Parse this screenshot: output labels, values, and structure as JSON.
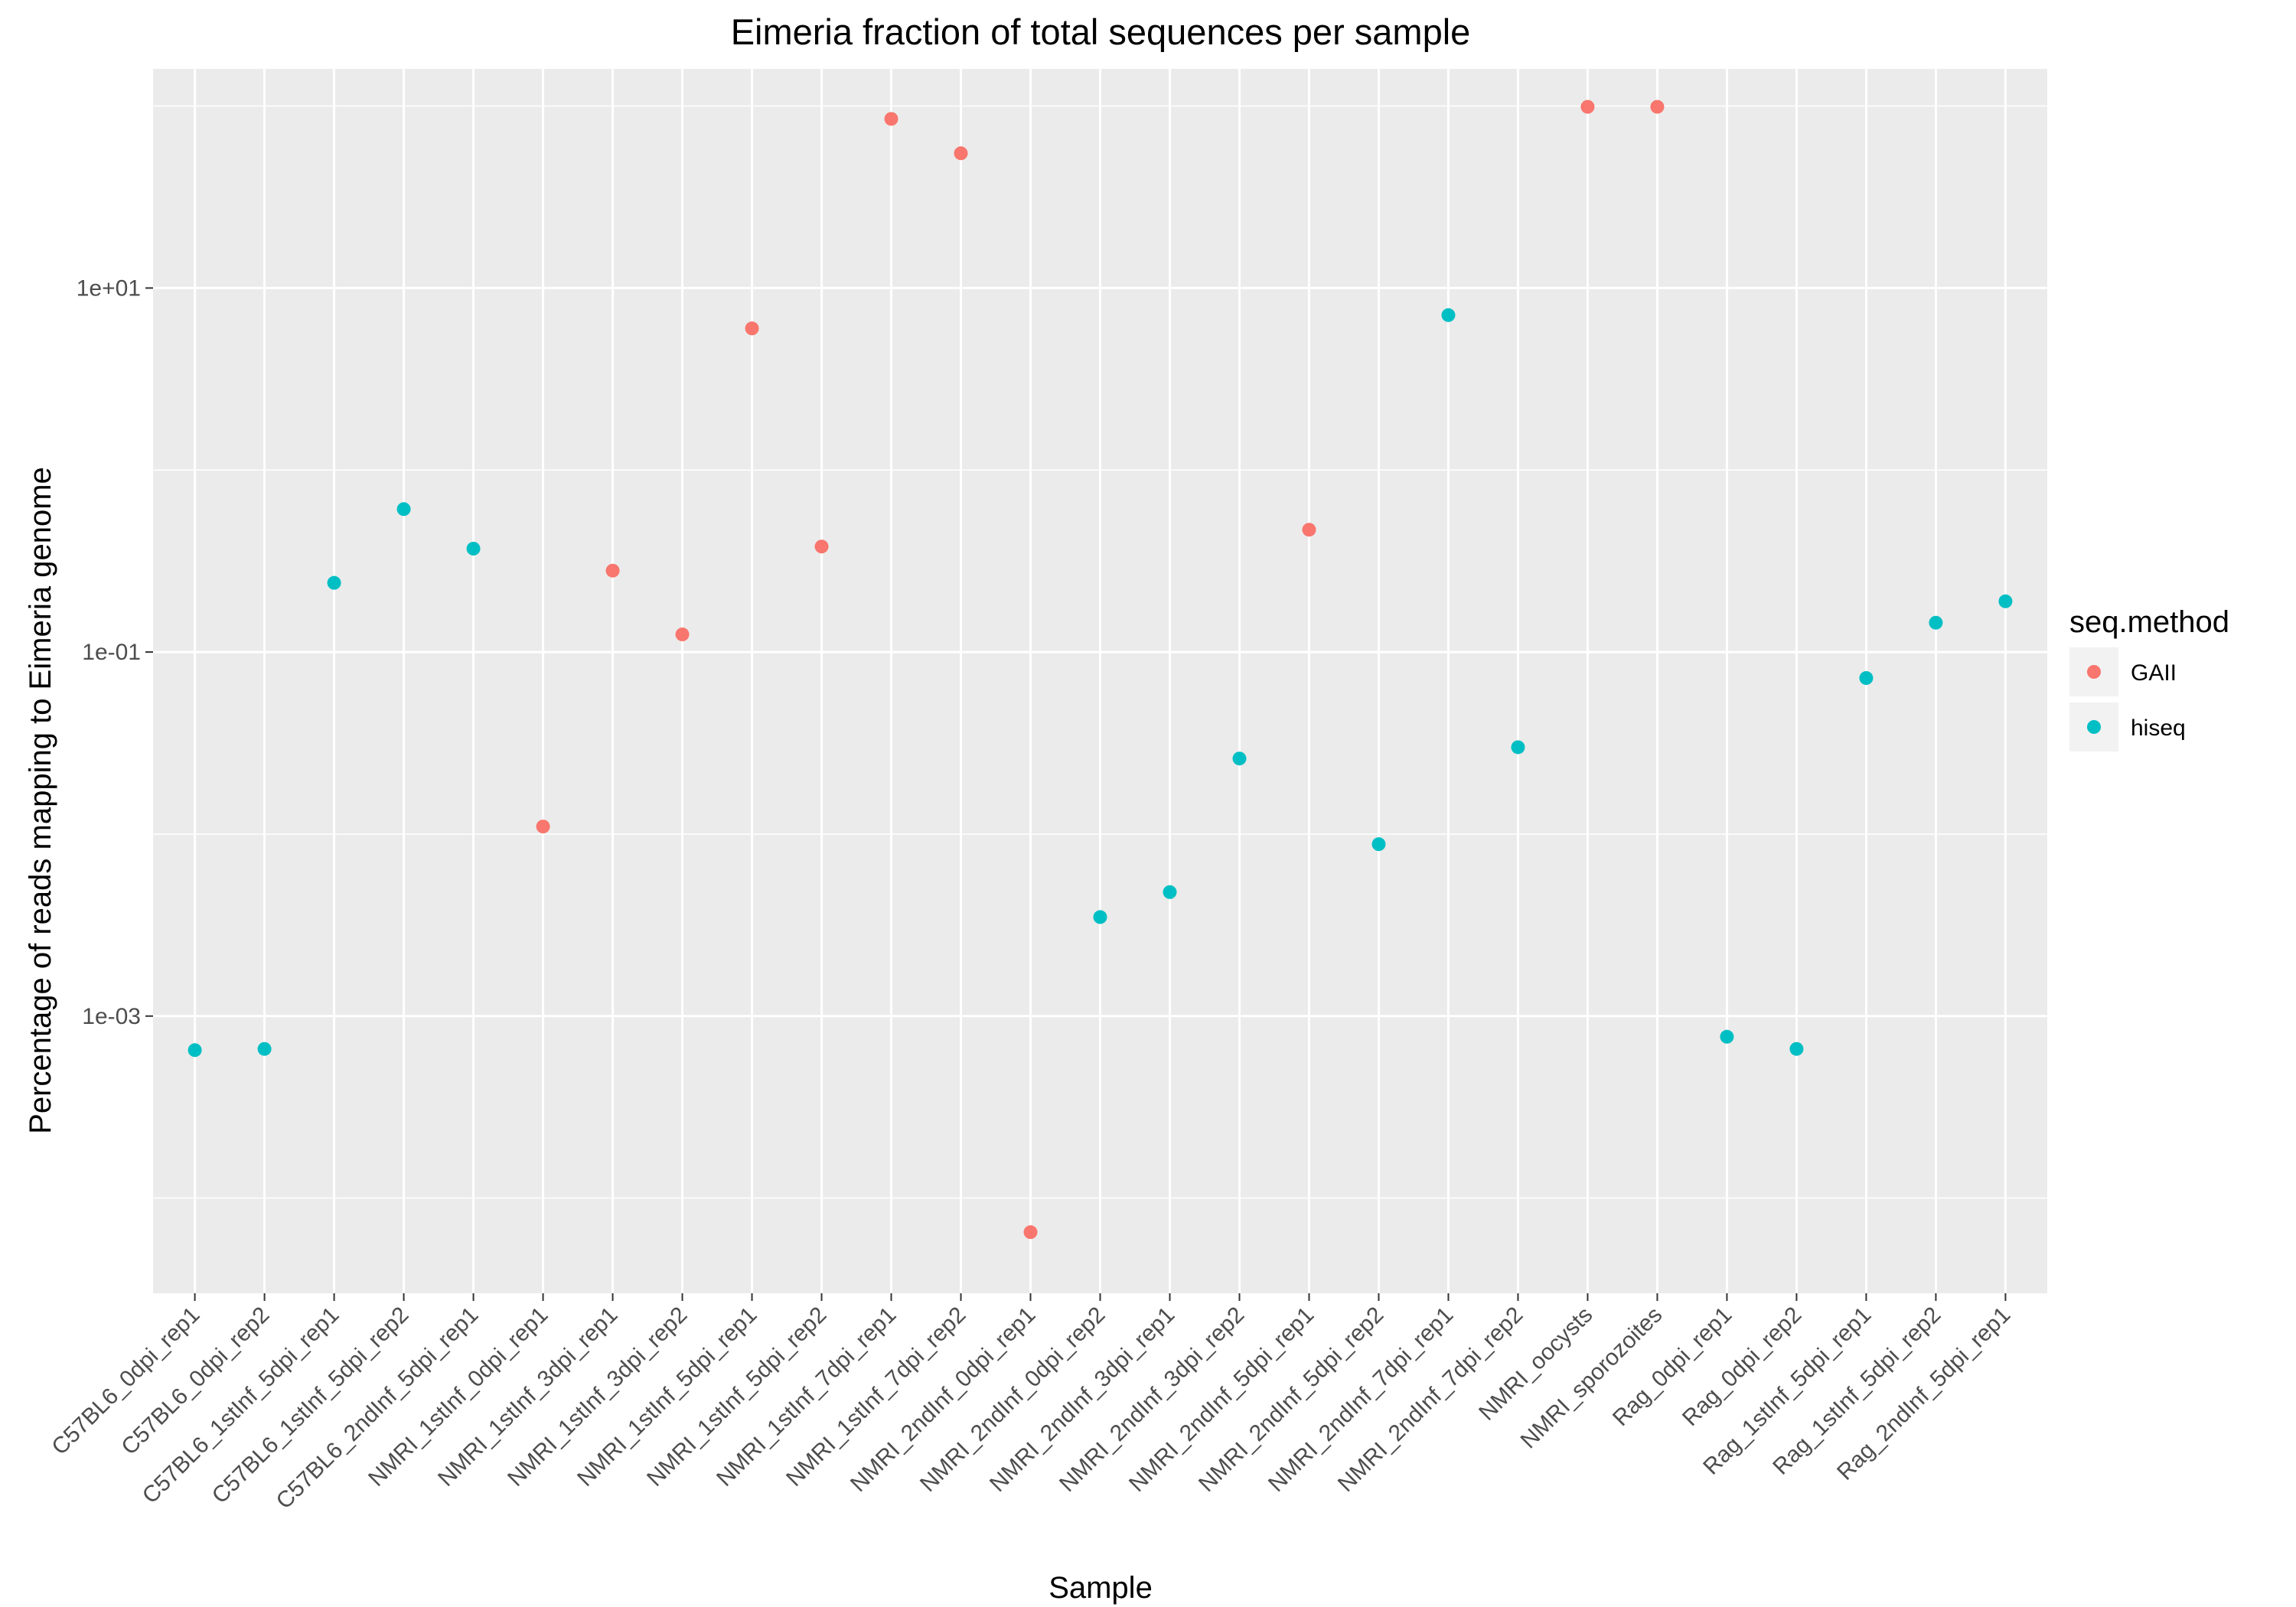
{
  "chart_data": {
    "type": "scatter",
    "title": "Eimeria fraction of total sequences per sample",
    "xlabel": "Sample",
    "ylabel": "Percentage of reads mapping to Eimeria genome",
    "y_scale": "log10",
    "ylim": [
      3e-05,
      160
    ],
    "y_ticks": [
      {
        "value": 0.001,
        "label": "1e-03"
      },
      {
        "value": 0.1,
        "label": "1e-01"
      },
      {
        "value": 10,
        "label": "1e+01"
      }
    ],
    "y_minor_gridlines": [
      0.0001,
      0.01,
      1,
      100
    ],
    "grid": true,
    "categories": [
      "C57BL6_0dpi_rep1",
      "C57BL6_0dpi_rep2",
      "C57BL6_1stInf_5dpi_rep1",
      "C57BL6_1stInf_5dpi_rep2",
      "C57BL6_2ndInf_5dpi_rep1",
      "NMRI_1stInf_0dpi_rep1",
      "NMRI_1stInf_3dpi_rep1",
      "NMRI_1stInf_3dpi_rep2",
      "NMRI_1stInf_5dpi_rep1",
      "NMRI_1stInf_5dpi_rep2",
      "NMRI_1stInf_7dpi_rep1",
      "NMRI_1stInf_7dpi_rep2",
      "NMRI_2ndInf_0dpi_rep1",
      "NMRI_2ndInf_0dpi_rep2",
      "NMRI_2ndInf_3dpi_rep1",
      "NMRI_2ndInf_3dpi_rep2",
      "NMRI_2ndInf_5dpi_rep1",
      "NMRI_2ndInf_5dpi_rep2",
      "NMRI_2ndInf_7dpi_rep1",
      "NMRI_2ndInf_7dpi_rep2",
      "NMRI_oocysts",
      "NMRI_sporozoites",
      "Rag_0dpi_rep1",
      "Rag_0dpi_rep2",
      "Rag_1stInf_5dpi_rep1",
      "Rag_1stInf_5dpi_rep2",
      "Rag_2ndInf_5dpi_rep1"
    ],
    "legend": {
      "title": "seq.method",
      "placement": "right",
      "entries": [
        {
          "name": "GAII",
          "color": "#F8766D"
        },
        {
          "name": "hiseq",
          "color": "#00BFC4"
        }
      ]
    },
    "points": [
      {
        "x": "C57BL6_0dpi_rep1",
        "y": 0.00065,
        "method": "hiseq"
      },
      {
        "x": "C57BL6_0dpi_rep2",
        "y": 0.00066,
        "method": "hiseq"
      },
      {
        "x": "C57BL6_1stInf_5dpi_rep1",
        "y": 0.24,
        "method": "hiseq"
      },
      {
        "x": "C57BL6_1stInf_5dpi_rep2",
        "y": 0.61,
        "method": "hiseq"
      },
      {
        "x": "C57BL6_2ndInf_5dpi_rep1",
        "y": 0.37,
        "method": "hiseq"
      },
      {
        "x": "NMRI_1stInf_0dpi_rep1",
        "y": 0.011,
        "method": "GAII"
      },
      {
        "x": "NMRI_1stInf_3dpi_rep1",
        "y": 0.28,
        "method": "GAII"
      },
      {
        "x": "NMRI_1stInf_3dpi_rep2",
        "y": 0.125,
        "method": "GAII"
      },
      {
        "x": "NMRI_1stInf_5dpi_rep1",
        "y": 6.0,
        "method": "GAII"
      },
      {
        "x": "NMRI_1stInf_5dpi_rep2",
        "y": 0.38,
        "method": "GAII"
      },
      {
        "x": "NMRI_1stInf_7dpi_rep1",
        "y": 85,
        "method": "GAII"
      },
      {
        "x": "NMRI_1stInf_7dpi_rep2",
        "y": 55,
        "method": "GAII"
      },
      {
        "x": "NMRI_2ndInf_0dpi_rep1",
        "y": 6.5e-05,
        "method": "GAII"
      },
      {
        "x": "NMRI_2ndInf_0dpi_rep2",
        "y": 0.0035,
        "method": "hiseq"
      },
      {
        "x": "NMRI_2ndInf_3dpi_rep1",
        "y": 0.0048,
        "method": "hiseq"
      },
      {
        "x": "NMRI_2ndInf_3dpi_rep2",
        "y": 0.026,
        "method": "hiseq"
      },
      {
        "x": "NMRI_2ndInf_5dpi_rep1",
        "y": 0.47,
        "method": "GAII"
      },
      {
        "x": "NMRI_2ndInf_5dpi_rep2",
        "y": 0.0088,
        "method": "hiseq"
      },
      {
        "x": "NMRI_2ndInf_7dpi_rep1",
        "y": 7.1,
        "method": "hiseq"
      },
      {
        "x": "NMRI_2ndInf_7dpi_rep2",
        "y": 0.03,
        "method": "hiseq"
      },
      {
        "x": "NMRI_oocysts",
        "y": 99,
        "method": "GAII"
      },
      {
        "x": "NMRI_sporozoites",
        "y": 99,
        "method": "GAII"
      },
      {
        "x": "Rag_0dpi_rep1",
        "y": 0.00077,
        "method": "hiseq"
      },
      {
        "x": "Rag_0dpi_rep2",
        "y": 0.00066,
        "method": "hiseq"
      },
      {
        "x": "Rag_1stInf_5dpi_rep1",
        "y": 0.072,
        "method": "hiseq"
      },
      {
        "x": "Rag_1stInf_5dpi_rep2",
        "y": 0.145,
        "method": "hiseq"
      },
      {
        "x": "Rag_2ndInf_5dpi_rep1",
        "y": 0.19,
        "method": "hiseq"
      }
    ]
  }
}
